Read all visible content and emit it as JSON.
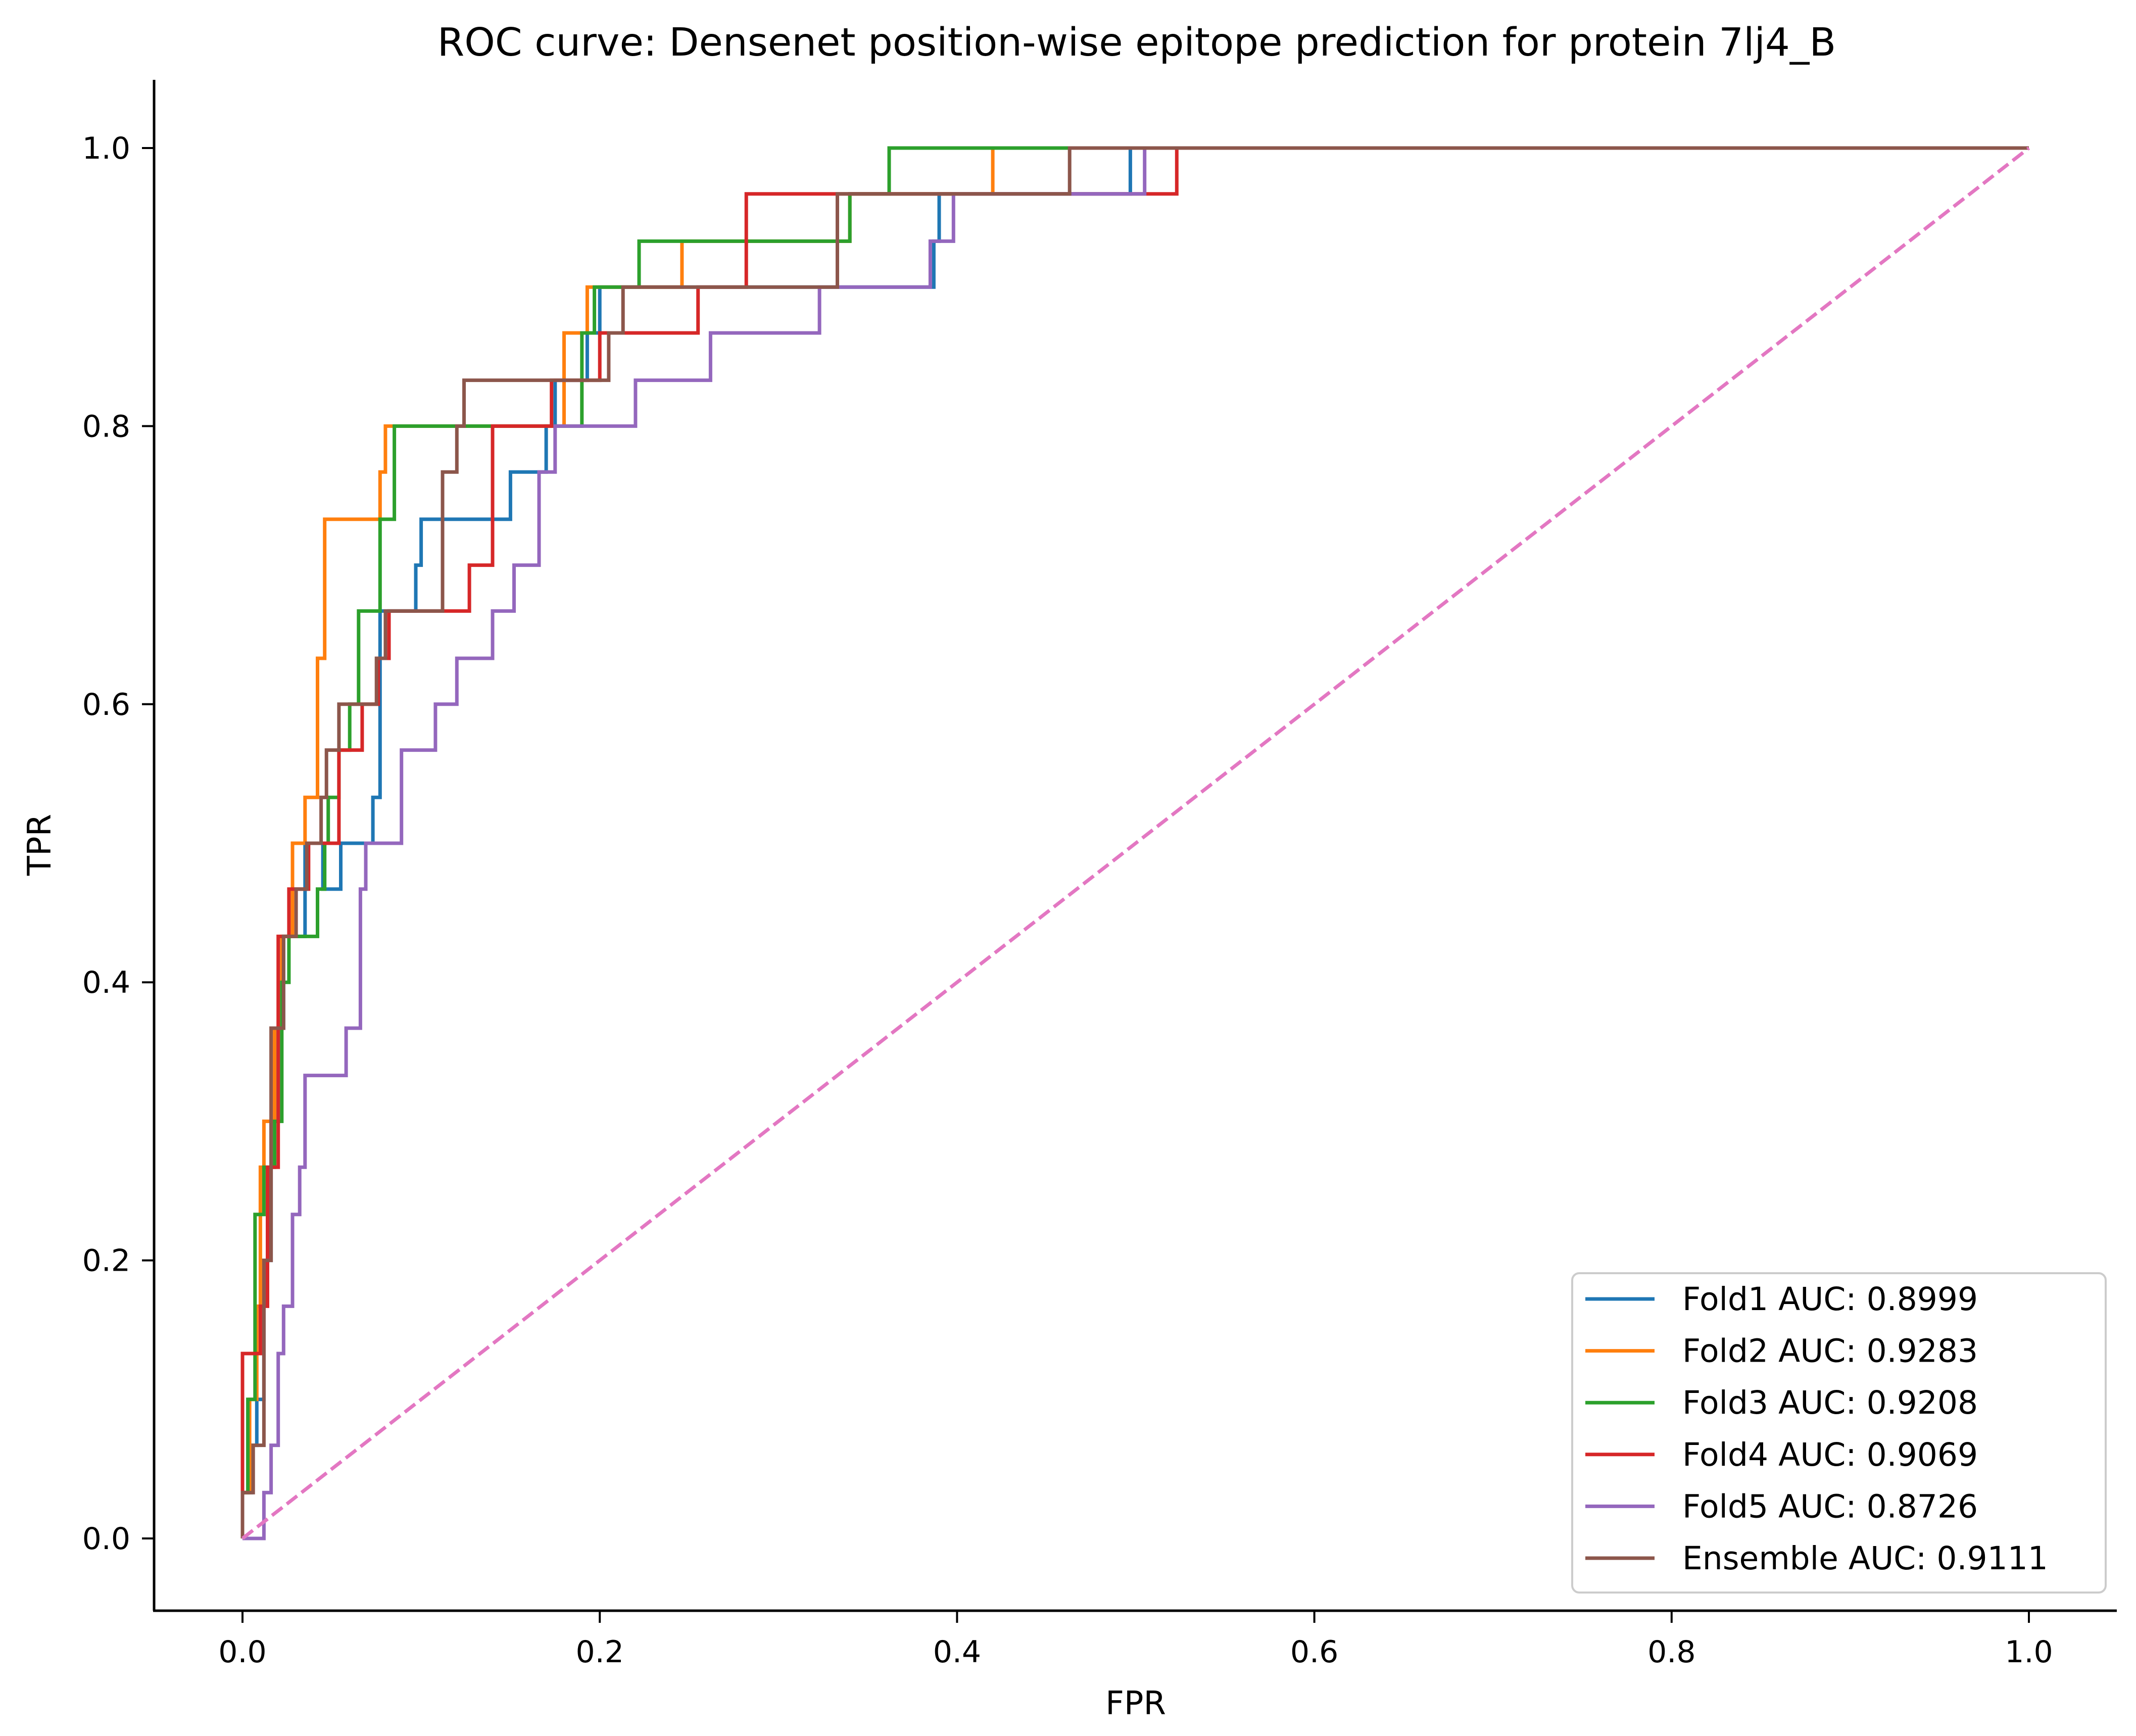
{
  "chart_data": {
    "type": "line",
    "title": "ROC curve: Densenet position-wise epitope prediction for protein 7lj4_B",
    "xlabel": "FPR",
    "ylabel": "TPR",
    "xlim": [
      -0.05,
      1.05
    ],
    "ylim": [
      -0.05,
      1.05
    ],
    "xticks": [
      0.0,
      0.2,
      0.4,
      0.6,
      0.8,
      1.0
    ],
    "yticks": [
      0.0,
      0.2,
      0.4,
      0.6,
      0.8,
      1.0
    ],
    "xtick_labels": [
      "0.0",
      "0.2",
      "0.4",
      "0.6",
      "0.8",
      "1.0"
    ],
    "ytick_labels": [
      "0.0",
      "0.2",
      "0.4",
      "0.6",
      "0.8",
      "1.0"
    ],
    "grid": false,
    "legend_position": "lower-right",
    "series": [
      {
        "name": "Fold1 AUC: 0.8999",
        "color": "#1f77b4",
        "style": "solid",
        "points": [
          [
            0,
            0
          ],
          [
            0,
            0.033
          ],
          [
            0.005,
            0.033
          ],
          [
            0.005,
            0.067
          ],
          [
            0.008,
            0.067
          ],
          [
            0.008,
            0.1
          ],
          [
            0.012,
            0.1
          ],
          [
            0.012,
            0.2
          ],
          [
            0.016,
            0.2
          ],
          [
            0.016,
            0.3
          ],
          [
            0.02,
            0.3
          ],
          [
            0.02,
            0.367
          ],
          [
            0.023,
            0.367
          ],
          [
            0.023,
            0.433
          ],
          [
            0.035,
            0.433
          ],
          [
            0.035,
            0.5
          ],
          [
            0.045,
            0.5
          ],
          [
            0.045,
            0.467
          ],
          [
            0.055,
            0.467
          ],
          [
            0.055,
            0.5
          ],
          [
            0.073,
            0.5
          ],
          [
            0.073,
            0.533
          ],
          [
            0.077,
            0.533
          ],
          [
            0.077,
            0.667
          ],
          [
            0.097,
            0.667
          ],
          [
            0.097,
            0.7
          ],
          [
            0.1,
            0.7
          ],
          [
            0.1,
            0.733
          ],
          [
            0.15,
            0.733
          ],
          [
            0.15,
            0.767
          ],
          [
            0.17,
            0.767
          ],
          [
            0.17,
            0.8
          ],
          [
            0.175,
            0.8
          ],
          [
            0.175,
            0.833
          ],
          [
            0.193,
            0.833
          ],
          [
            0.193,
            0.867
          ],
          [
            0.2,
            0.867
          ],
          [
            0.2,
            0.9
          ],
          [
            0.387,
            0.9
          ],
          [
            0.387,
            0.933
          ],
          [
            0.39,
            0.933
          ],
          [
            0.39,
            0.967
          ],
          [
            0.497,
            0.967
          ],
          [
            0.497,
            1.0
          ],
          [
            1,
            1.0
          ]
        ]
      },
      {
        "name": "Fold2 AUC: 0.9283",
        "color": "#ff7f0e",
        "style": "solid",
        "points": [
          [
            0,
            0
          ],
          [
            0,
            0.033
          ],
          [
            0.004,
            0.033
          ],
          [
            0.004,
            0.1
          ],
          [
            0.008,
            0.1
          ],
          [
            0.008,
            0.167
          ],
          [
            0.01,
            0.167
          ],
          [
            0.01,
            0.267
          ],
          [
            0.012,
            0.267
          ],
          [
            0.012,
            0.3
          ],
          [
            0.018,
            0.3
          ],
          [
            0.018,
            0.367
          ],
          [
            0.022,
            0.367
          ],
          [
            0.022,
            0.433
          ],
          [
            0.028,
            0.433
          ],
          [
            0.028,
            0.5
          ],
          [
            0.035,
            0.5
          ],
          [
            0.035,
            0.533
          ],
          [
            0.042,
            0.533
          ],
          [
            0.042,
            0.633
          ],
          [
            0.046,
            0.633
          ],
          [
            0.046,
            0.733
          ],
          [
            0.077,
            0.733
          ],
          [
            0.077,
            0.767
          ],
          [
            0.08,
            0.767
          ],
          [
            0.08,
            0.8
          ],
          [
            0.18,
            0.8
          ],
          [
            0.18,
            0.867
          ],
          [
            0.193,
            0.867
          ],
          [
            0.193,
            0.9
          ],
          [
            0.246,
            0.9
          ],
          [
            0.246,
            0.933
          ],
          [
            0.34,
            0.933
          ],
          [
            0.34,
            0.967
          ],
          [
            0.42,
            0.967
          ],
          [
            0.42,
            1.0
          ],
          [
            1,
            1.0
          ]
        ]
      },
      {
        "name": "Fold3 AUC: 0.9208",
        "color": "#2ca02c",
        "style": "solid",
        "points": [
          [
            0,
            0
          ],
          [
            0,
            0.033
          ],
          [
            0.003,
            0.033
          ],
          [
            0.003,
            0.1
          ],
          [
            0.007,
            0.1
          ],
          [
            0.007,
            0.233
          ],
          [
            0.012,
            0.233
          ],
          [
            0.012,
            0.267
          ],
          [
            0.018,
            0.267
          ],
          [
            0.018,
            0.3
          ],
          [
            0.022,
            0.3
          ],
          [
            0.022,
            0.4
          ],
          [
            0.026,
            0.4
          ],
          [
            0.026,
            0.433
          ],
          [
            0.042,
            0.433
          ],
          [
            0.042,
            0.467
          ],
          [
            0.046,
            0.467
          ],
          [
            0.046,
            0.5
          ],
          [
            0.048,
            0.5
          ],
          [
            0.048,
            0.533
          ],
          [
            0.054,
            0.533
          ],
          [
            0.054,
            0.567
          ],
          [
            0.06,
            0.567
          ],
          [
            0.06,
            0.6
          ],
          [
            0.065,
            0.6
          ],
          [
            0.065,
            0.667
          ],
          [
            0.077,
            0.667
          ],
          [
            0.077,
            0.733
          ],
          [
            0.085,
            0.733
          ],
          [
            0.085,
            0.8
          ],
          [
            0.19,
            0.8
          ],
          [
            0.19,
            0.867
          ],
          [
            0.197,
            0.867
          ],
          [
            0.197,
            0.9
          ],
          [
            0.222,
            0.9
          ],
          [
            0.222,
            0.933
          ],
          [
            0.34,
            0.933
          ],
          [
            0.34,
            0.967
          ],
          [
            0.362,
            0.967
          ],
          [
            0.362,
            1.0
          ],
          [
            1,
            1.0
          ]
        ]
      },
      {
        "name": "Fold4 AUC: 0.9069",
        "color": "#d62728",
        "style": "solid",
        "points": [
          [
            0,
            0
          ],
          [
            0,
            0.133
          ],
          [
            0.01,
            0.133
          ],
          [
            0.01,
            0.167
          ],
          [
            0.014,
            0.167
          ],
          [
            0.014,
            0.267
          ],
          [
            0.02,
            0.267
          ],
          [
            0.02,
            0.433
          ],
          [
            0.026,
            0.433
          ],
          [
            0.026,
            0.467
          ],
          [
            0.037,
            0.467
          ],
          [
            0.037,
            0.5
          ],
          [
            0.054,
            0.5
          ],
          [
            0.054,
            0.567
          ],
          [
            0.067,
            0.567
          ],
          [
            0.067,
            0.6
          ],
          [
            0.076,
            0.6
          ],
          [
            0.076,
            0.633
          ],
          [
            0.082,
            0.633
          ],
          [
            0.082,
            0.667
          ],
          [
            0.127,
            0.667
          ],
          [
            0.127,
            0.7
          ],
          [
            0.14,
            0.7
          ],
          [
            0.14,
            0.8
          ],
          [
            0.173,
            0.8
          ],
          [
            0.173,
            0.833
          ],
          [
            0.2,
            0.833
          ],
          [
            0.2,
            0.867
          ],
          [
            0.255,
            0.867
          ],
          [
            0.255,
            0.9
          ],
          [
            0.282,
            0.9
          ],
          [
            0.282,
            0.967
          ],
          [
            0.523,
            0.967
          ],
          [
            0.523,
            1.0
          ],
          [
            1,
            1.0
          ]
        ]
      },
      {
        "name": "Fold5 AUC: 0.8726",
        "color": "#9467bd",
        "style": "solid",
        "points": [
          [
            0,
            0
          ],
          [
            0.012,
            0
          ],
          [
            0.012,
            0.033
          ],
          [
            0.016,
            0.033
          ],
          [
            0.016,
            0.067
          ],
          [
            0.02,
            0.067
          ],
          [
            0.02,
            0.133
          ],
          [
            0.023,
            0.133
          ],
          [
            0.023,
            0.167
          ],
          [
            0.028,
            0.167
          ],
          [
            0.028,
            0.233
          ],
          [
            0.032,
            0.233
          ],
          [
            0.032,
            0.267
          ],
          [
            0.035,
            0.267
          ],
          [
            0.035,
            0.333
          ],
          [
            0.058,
            0.333
          ],
          [
            0.058,
            0.367
          ],
          [
            0.066,
            0.367
          ],
          [
            0.066,
            0.467
          ],
          [
            0.069,
            0.467
          ],
          [
            0.069,
            0.5
          ],
          [
            0.089,
            0.5
          ],
          [
            0.089,
            0.567
          ],
          [
            0.108,
            0.567
          ],
          [
            0.108,
            0.6
          ],
          [
            0.12,
            0.6
          ],
          [
            0.12,
            0.633
          ],
          [
            0.14,
            0.633
          ],
          [
            0.14,
            0.667
          ],
          [
            0.152,
            0.667
          ],
          [
            0.152,
            0.7
          ],
          [
            0.166,
            0.7
          ],
          [
            0.166,
            0.767
          ],
          [
            0.175,
            0.767
          ],
          [
            0.175,
            0.8
          ],
          [
            0.22,
            0.8
          ],
          [
            0.22,
            0.833
          ],
          [
            0.262,
            0.833
          ],
          [
            0.262,
            0.867
          ],
          [
            0.323,
            0.867
          ],
          [
            0.323,
            0.9
          ],
          [
            0.385,
            0.9
          ],
          [
            0.385,
            0.933
          ],
          [
            0.398,
            0.933
          ],
          [
            0.398,
            0.967
          ],
          [
            0.505,
            0.967
          ],
          [
            0.505,
            1.0
          ],
          [
            1,
            1.0
          ]
        ]
      },
      {
        "name": "Ensemble AUC: 0.9111",
        "color": "#8c564b",
        "style": "solid",
        "points": [
          [
            0,
            0
          ],
          [
            0,
            0.033
          ],
          [
            0.006,
            0.033
          ],
          [
            0.006,
            0.067
          ],
          [
            0.012,
            0.067
          ],
          [
            0.012,
            0.2
          ],
          [
            0.016,
            0.2
          ],
          [
            0.016,
            0.367
          ],
          [
            0.023,
            0.367
          ],
          [
            0.023,
            0.433
          ],
          [
            0.03,
            0.433
          ],
          [
            0.03,
            0.467
          ],
          [
            0.036,
            0.467
          ],
          [
            0.036,
            0.5
          ],
          [
            0.044,
            0.5
          ],
          [
            0.044,
            0.533
          ],
          [
            0.047,
            0.533
          ],
          [
            0.047,
            0.567
          ],
          [
            0.054,
            0.567
          ],
          [
            0.054,
            0.6
          ],
          [
            0.075,
            0.6
          ],
          [
            0.075,
            0.633
          ],
          [
            0.08,
            0.633
          ],
          [
            0.08,
            0.667
          ],
          [
            0.112,
            0.667
          ],
          [
            0.112,
            0.767
          ],
          [
            0.12,
            0.767
          ],
          [
            0.12,
            0.8
          ],
          [
            0.124,
            0.8
          ],
          [
            0.124,
            0.833
          ],
          [
            0.205,
            0.833
          ],
          [
            0.205,
            0.867
          ],
          [
            0.213,
            0.867
          ],
          [
            0.213,
            0.9
          ],
          [
            0.333,
            0.9
          ],
          [
            0.333,
            0.967
          ],
          [
            0.463,
            0.967
          ],
          [
            0.463,
            1.0
          ],
          [
            1,
            1.0
          ]
        ]
      },
      {
        "name": "",
        "color": "#e377c2",
        "style": "dashed",
        "points": [
          [
            0,
            0
          ],
          [
            1,
            1
          ]
        ]
      }
    ]
  }
}
